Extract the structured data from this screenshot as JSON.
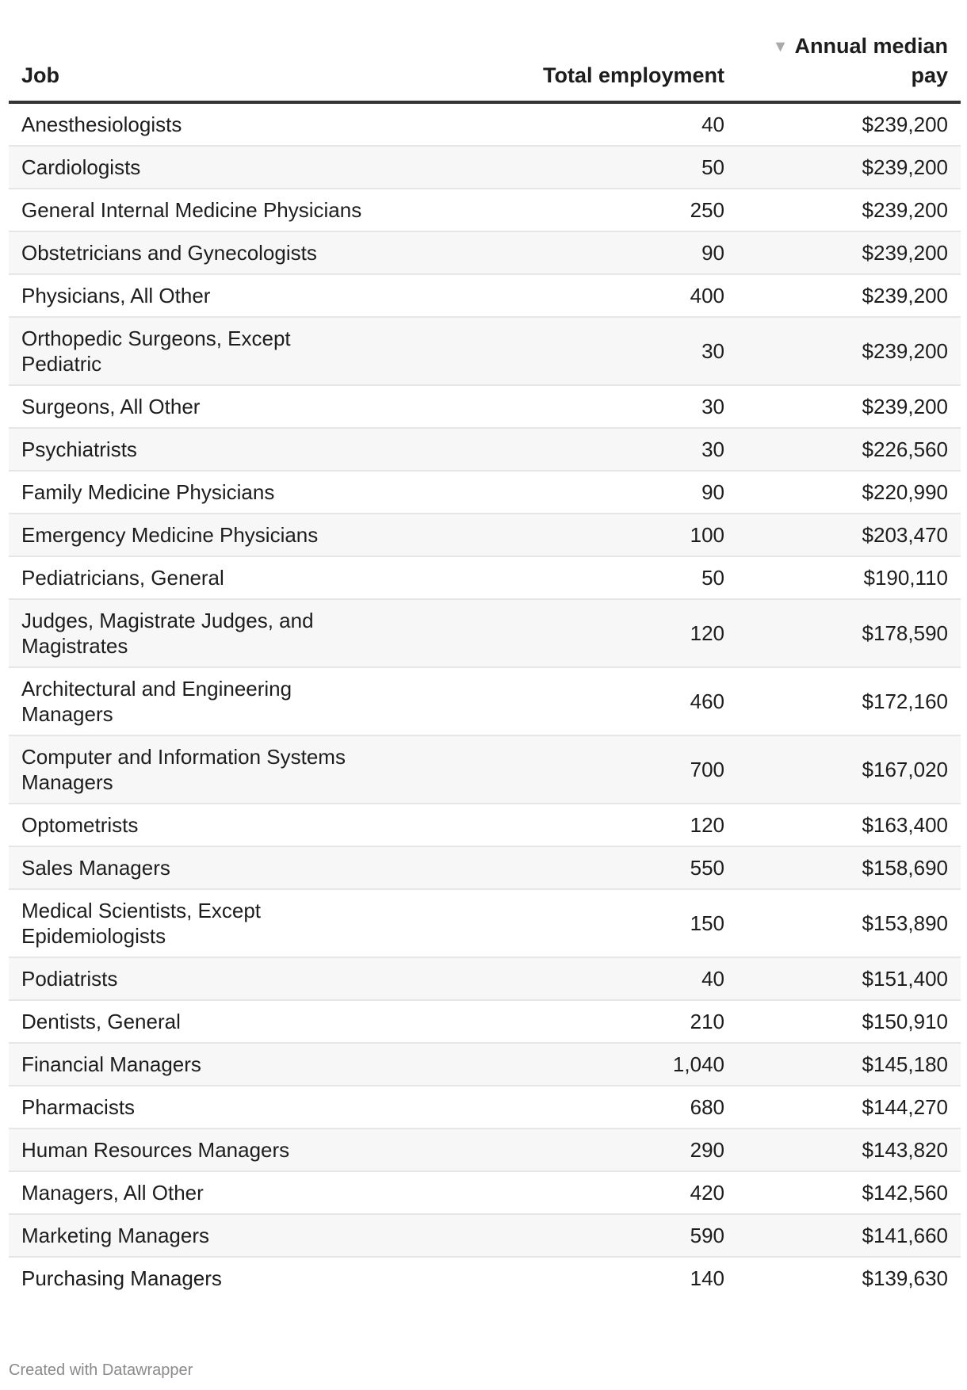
{
  "table": {
    "headers": {
      "job": "Job",
      "employment": "Total employment",
      "pay": "Annual median pay",
      "sort_icon": "sort-descending-triangle"
    },
    "rows": [
      {
        "job": "Anesthesiologists",
        "employment": "40",
        "pay": "$239,200"
      },
      {
        "job": "Cardiologists",
        "employment": "50",
        "pay": "$239,200"
      },
      {
        "job": "General Internal Medicine Physicians",
        "employment": "250",
        "pay": "$239,200"
      },
      {
        "job": "Obstetricians and Gynecologists",
        "employment": "90",
        "pay": "$239,200"
      },
      {
        "job": "Physicians, All Other",
        "employment": "400",
        "pay": "$239,200"
      },
      {
        "job": "Orthopedic Surgeons, Except Pediatric",
        "employment": "30",
        "pay": "$239,200"
      },
      {
        "job": "Surgeons, All Other",
        "employment": "30",
        "pay": "$239,200"
      },
      {
        "job": "Psychiatrists",
        "employment": "30",
        "pay": "$226,560"
      },
      {
        "job": "Family Medicine Physicians",
        "employment": "90",
        "pay": "$220,990"
      },
      {
        "job": "Emergency Medicine Physicians",
        "employment": "100",
        "pay": "$203,470"
      },
      {
        "job": "Pediatricians, General",
        "employment": "50",
        "pay": "$190,110"
      },
      {
        "job": "Judges, Magistrate Judges, and Magistrates",
        "employment": "120",
        "pay": "$178,590"
      },
      {
        "job": "Architectural and Engineering Managers",
        "employment": "460",
        "pay": "$172,160"
      },
      {
        "job": "Computer and Information Systems Managers",
        "employment": "700",
        "pay": "$167,020"
      },
      {
        "job": "Optometrists",
        "employment": "120",
        "pay": "$163,400"
      },
      {
        "job": "Sales Managers",
        "employment": "550",
        "pay": "$158,690"
      },
      {
        "job": "Medical Scientists, Except Epidemiologists",
        "employment": "150",
        "pay": "$153,890"
      },
      {
        "job": "Podiatrists",
        "employment": "40",
        "pay": "$151,400"
      },
      {
        "job": "Dentists, General",
        "employment": "210",
        "pay": "$150,910"
      },
      {
        "job": "Financial Managers",
        "employment": "1,040",
        "pay": "$145,180"
      },
      {
        "job": "Pharmacists",
        "employment": "680",
        "pay": "$144,270"
      },
      {
        "job": "Human Resources Managers",
        "employment": "290",
        "pay": "$143,820"
      },
      {
        "job": "Managers, All Other",
        "employment": "420",
        "pay": "$142,560"
      },
      {
        "job": "Marketing Managers",
        "employment": "590",
        "pay": "$141,660"
      },
      {
        "job": "Purchasing Managers",
        "employment": "140",
        "pay": "$139,630"
      }
    ]
  },
  "footer": "Created with Datawrapper",
  "colors": {
    "stripe": "#f7f7f7",
    "header_rule": "#333333",
    "row_rule": "#e6e6e6",
    "footer_text": "#8a8a8a"
  }
}
